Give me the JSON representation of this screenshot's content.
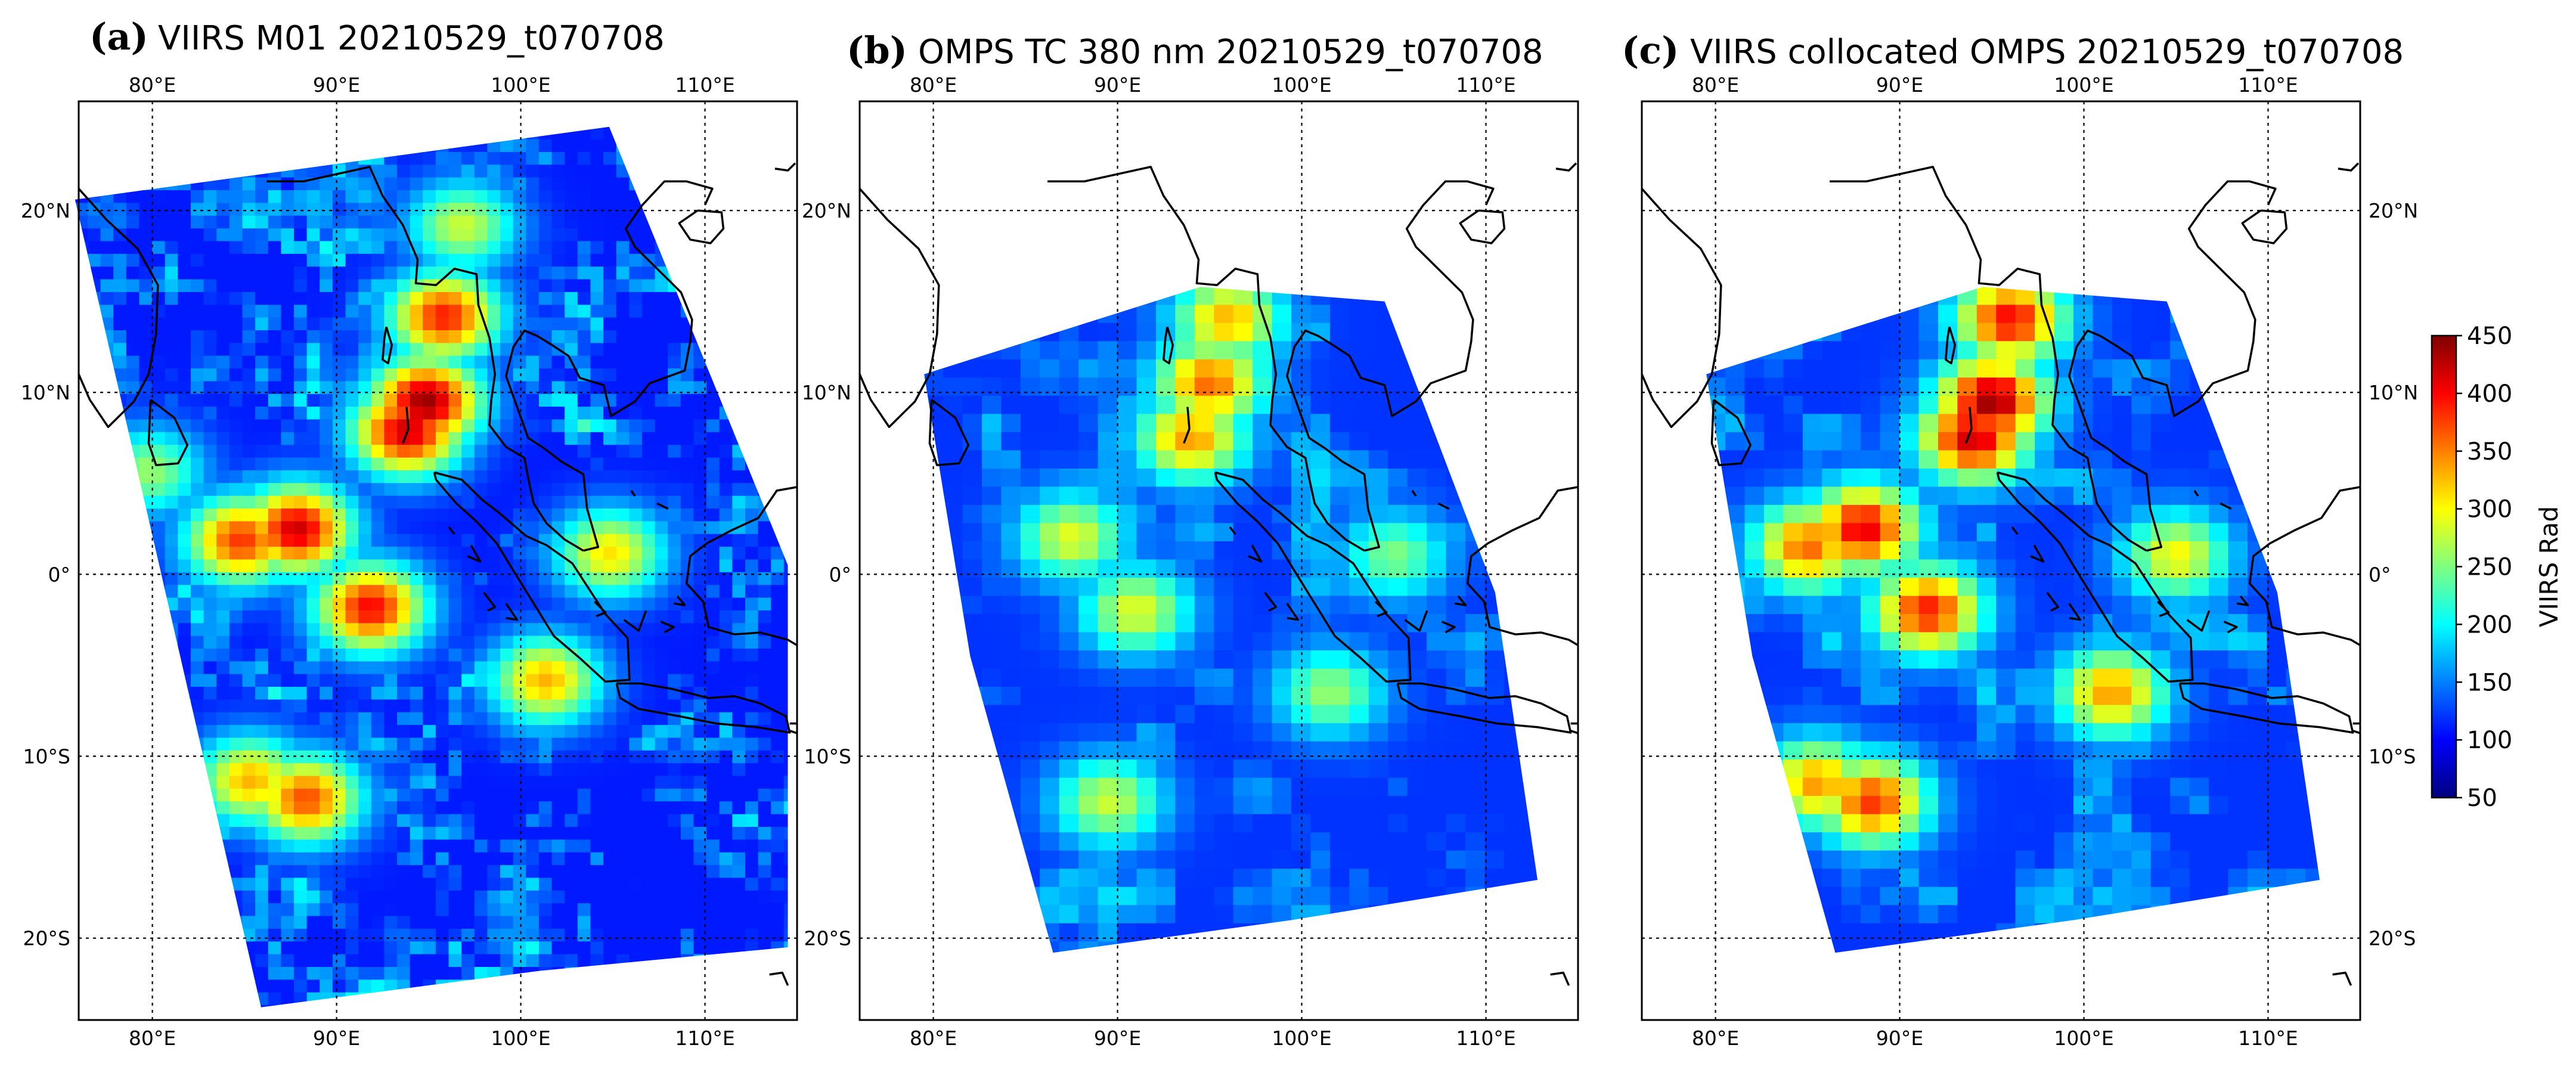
{
  "chart_data": [
    {
      "type": "heatmap",
      "panel_label": "(a)",
      "title": "VIIRS M01 20210529_t070708",
      "x_tick_labels": [
        "80°E",
        "90°E",
        "100°E",
        "110°E"
      ],
      "y_tick_labels": [
        "20°N",
        "10°N",
        "0°",
        "10°S",
        "20°S"
      ],
      "x_ticks_lon": [
        80,
        90,
        100,
        110
      ],
      "y_ticks_lat": [
        20,
        10,
        0,
        -10,
        -20
      ],
      "lon_range": [
        76,
        115
      ],
      "lat_range": [
        -24.5,
        26
      ],
      "swath_corners": [
        [
          75.8,
          20.6
        ],
        [
          104.8,
          24.6
        ],
        [
          114.5,
          0.5
        ],
        [
          114.5,
          -20.5
        ],
        [
          101,
          -21.8
        ],
        [
          85.9,
          -23.8
        ]
      ],
      "colorbar": "jet",
      "value_range": [
        50,
        450
      ],
      "hotspots": [
        {
          "lon": 94.5,
          "lat": 9.8,
          "value": 440
        },
        {
          "lon": 93.5,
          "lat": 8.2,
          "value": 420
        },
        {
          "lon": 95.5,
          "lat": 14.5,
          "value": 390
        },
        {
          "lon": 87.5,
          "lat": 2.8,
          "value": 420
        },
        {
          "lon": 84.5,
          "lat": 2.2,
          "value": 380
        },
        {
          "lon": 91.5,
          "lat": -1.5,
          "value": 400
        },
        {
          "lon": 88.0,
          "lat": -12.0,
          "value": 370
        },
        {
          "lon": 85.0,
          "lat": -11.0,
          "value": 330
        },
        {
          "lon": 101.0,
          "lat": -5.5,
          "value": 330
        },
        {
          "lon": 104.5,
          "lat": 1.5,
          "value": 310
        },
        {
          "lon": 79.5,
          "lat": 6.0,
          "value": 260
        },
        {
          "lon": 96.5,
          "lat": 19.5,
          "value": 280
        }
      ]
    },
    {
      "type": "heatmap",
      "panel_label": "(b)",
      "title": "OMPS TC 380 nm 20210529_t070708",
      "x_tick_labels": [
        "80°E",
        "90°E",
        "100°E",
        "110°E"
      ],
      "y_tick_labels": [
        "20°N",
        "10°N",
        "0°",
        "10°S",
        "20°S"
      ],
      "x_ticks_lon": [
        80,
        90,
        100,
        110
      ],
      "y_ticks_lat": [
        20,
        10,
        0,
        -10,
        -20
      ],
      "lon_range": [
        76,
        115
      ],
      "lat_range": [
        -24.5,
        26
      ],
      "swath_corners": [
        [
          79.5,
          11.0
        ],
        [
          94.5,
          15.8
        ],
        [
          104.5,
          15.0
        ],
        [
          110.5,
          -1.0
        ],
        [
          112.8,
          -16.8
        ],
        [
          99.5,
          -19.0
        ],
        [
          86.5,
          -20.8
        ],
        [
          82.0,
          -4.5
        ]
      ],
      "colorbar": "jet",
      "value_range": [
        50,
        450
      ],
      "hotspots": [
        {
          "lon": 94.5,
          "lat": 11.0,
          "value": 360
        },
        {
          "lon": 93.5,
          "lat": 8.0,
          "value": 340
        },
        {
          "lon": 95.5,
          "lat": 14.5,
          "value": 330
        },
        {
          "lon": 87.0,
          "lat": 2.5,
          "value": 290
        },
        {
          "lon": 90.5,
          "lat": -1.5,
          "value": 290
        },
        {
          "lon": 89.0,
          "lat": -12.0,
          "value": 280
        },
        {
          "lon": 101.0,
          "lat": -6.0,
          "value": 260
        },
        {
          "lon": 104.5,
          "lat": 1.5,
          "value": 250
        }
      ]
    },
    {
      "type": "heatmap",
      "panel_label": "(c)",
      "title": "VIIRS collocated OMPS 20210529_t070708",
      "x_tick_labels": [
        "80°E",
        "90°E",
        "100°E",
        "110°E"
      ],
      "y_tick_labels": [
        "20°N",
        "10°N",
        "0°",
        "10°S",
        "20°S"
      ],
      "x_ticks_lon": [
        80,
        90,
        100,
        110
      ],
      "y_ticks_lat": [
        20,
        10,
        0,
        -10,
        -20
      ],
      "lon_range": [
        76,
        115
      ],
      "lat_range": [
        -24.5,
        26
      ],
      "swath_corners": [
        [
          79.5,
          11.0
        ],
        [
          94.5,
          15.8
        ],
        [
          104.5,
          15.0
        ],
        [
          110.5,
          -1.0
        ],
        [
          112.8,
          -16.8
        ],
        [
          99.5,
          -19.0
        ],
        [
          86.5,
          -20.8
        ],
        [
          82.0,
          -4.5
        ]
      ],
      "colorbar": "jet",
      "value_range": [
        50,
        450
      ],
      "hotspots": [
        {
          "lon": 94.5,
          "lat": 10.0,
          "value": 440
        },
        {
          "lon": 93.5,
          "lat": 8.0,
          "value": 420
        },
        {
          "lon": 95.5,
          "lat": 14.5,
          "value": 400
        },
        {
          "lon": 87.5,
          "lat": 3.0,
          "value": 410
        },
        {
          "lon": 84.5,
          "lat": 2.0,
          "value": 360
        },
        {
          "lon": 91.0,
          "lat": -1.5,
          "value": 390
        },
        {
          "lon": 88.0,
          "lat": -12.0,
          "value": 380
        },
        {
          "lon": 85.0,
          "lat": -11.0,
          "value": 340
        },
        {
          "lon": 101.0,
          "lat": -6.0,
          "value": 340
        },
        {
          "lon": 104.5,
          "lat": 1.5,
          "value": 300
        }
      ]
    }
  ],
  "colorbar": {
    "label": "VIIRS Rad",
    "min": 50,
    "max": 450,
    "ticks": [
      "450",
      "400",
      "350",
      "300",
      "250",
      "200",
      "150",
      "100",
      "50"
    ],
    "tick_values": [
      450,
      400,
      350,
      300,
      250,
      200,
      150,
      100,
      50
    ],
    "colormap": "jet"
  },
  "colors": {
    "background": "#ffffff",
    "land_outline": "#000000",
    "jet_stops": [
      "#00007f",
      "#0000ff",
      "#007fff",
      "#00ffff",
      "#7fff7f",
      "#ffff00",
      "#ff7f00",
      "#ff0000",
      "#7f0000"
    ]
  }
}
